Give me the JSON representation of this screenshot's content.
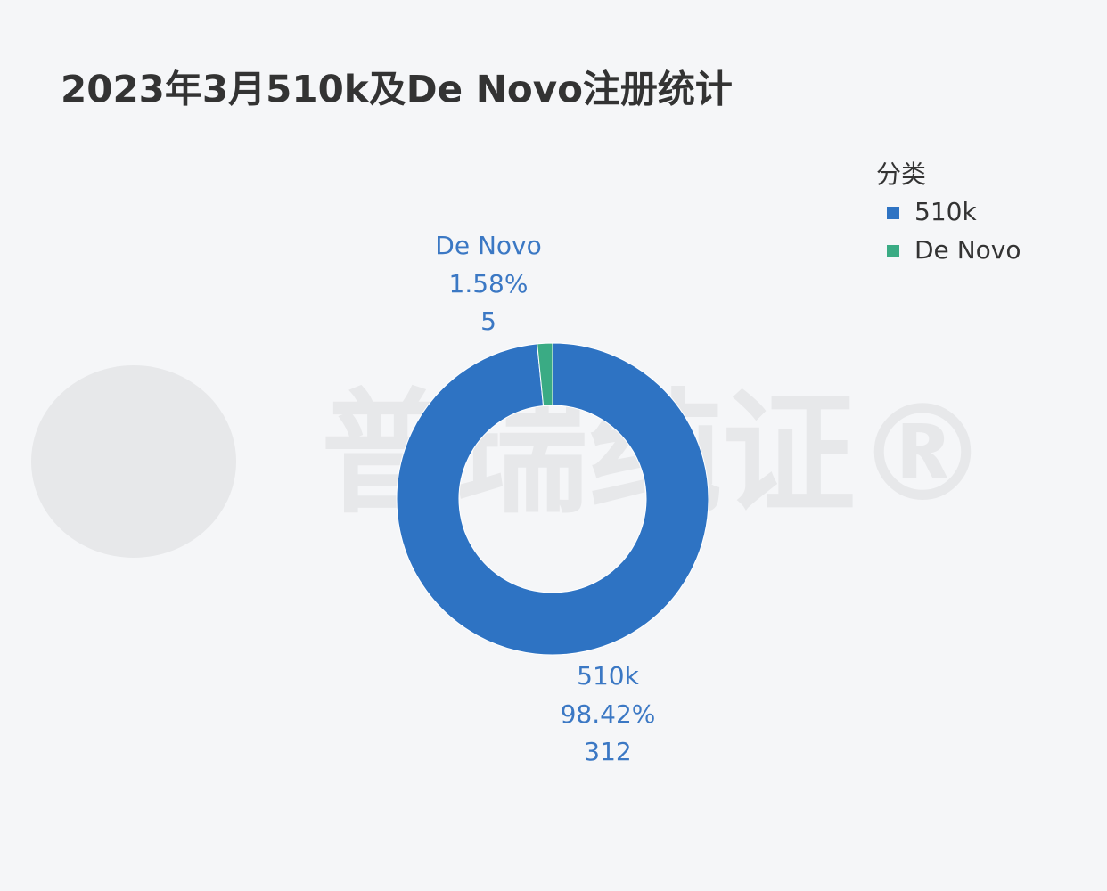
{
  "chart_data": {
    "type": "donut",
    "title": "2023年3月510k及De Novo注册统计",
    "categories": [
      "510k",
      "De Novo"
    ],
    "values": [
      312,
      5
    ],
    "percents": [
      98.42,
      1.58
    ],
    "percent_labels": [
      "98.42%",
      "1.58%"
    ],
    "colors": [
      "#2e73c3",
      "#3aab84"
    ],
    "legend_title": "分类",
    "legend": "top-right",
    "watermark": "普瑞纯证®"
  }
}
